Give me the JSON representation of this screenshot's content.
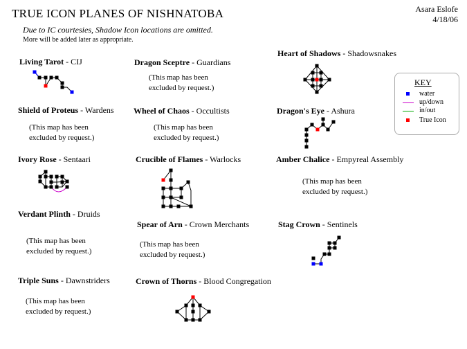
{
  "header": {
    "title": "TRUE ICON PLANES OF NISHNATOBA",
    "subtitle": "Due to IC courtesies, Shadow Icon locations are omitted.",
    "note": "More will be added later as appropriate.",
    "author": "Asara Eslofe",
    "date": "4/18/06"
  },
  "excluded_text": "(This map has been excluded by request.)",
  "colors": {
    "water": "#0000ff",
    "updown": "#cc00cc",
    "inout": "#00aa00",
    "true_icon": "#ff0000",
    "room": "#000000"
  },
  "key": {
    "title": "KEY",
    "items": [
      {
        "label": "water",
        "symbol": "blue-square-icon"
      },
      {
        "label": "up/down",
        "symbol": "purple-line-icon"
      },
      {
        "label": "in/out",
        "symbol": "green-line-icon"
      },
      {
        "label": "True Icon",
        "symbol": "red-square-icon"
      }
    ]
  },
  "planes": [
    {
      "name": "Living Tarot",
      "group": "CIJ",
      "excluded": false
    },
    {
      "name": "Dragon Sceptre",
      "group": "Guardians",
      "excluded": true
    },
    {
      "name": "Heart of Shadows",
      "group": "Shadowsnakes",
      "excluded": false
    },
    {
      "name": "Shield of Proteus",
      "group": "Wardens",
      "excluded": true
    },
    {
      "name": "Wheel of Chaos",
      "group": "Occultists",
      "excluded": true
    },
    {
      "name": "Dragon's Eye",
      "group": "Ashura",
      "excluded": false
    },
    {
      "name": "Ivory Rose",
      "group": "Sentaari",
      "excluded": false
    },
    {
      "name": "Crucible of Flames",
      "group": "Warlocks",
      "excluded": false
    },
    {
      "name": "Amber Chalice",
      "group": "Empyreal Assembly",
      "excluded": true
    },
    {
      "name": "Verdant Plinth",
      "group": "Druids",
      "excluded": true
    },
    {
      "name": "Spear of Arn",
      "group": "Crown Merchants",
      "excluded": true
    },
    {
      "name": "Stag Crown",
      "group": "Sentinels",
      "excluded": false
    },
    {
      "name": "Triple Suns",
      "group": "Dawnstriders",
      "excluded": true
    },
    {
      "name": "Crown of Thorns",
      "group": "Blood Congregation",
      "excluded": false
    }
  ]
}
